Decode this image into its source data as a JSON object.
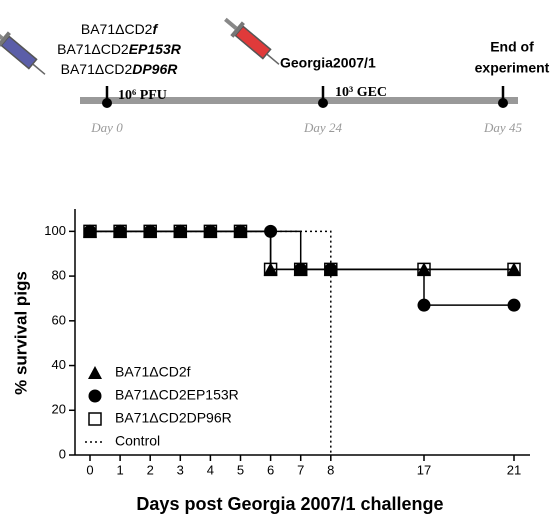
{
  "timeline": {
    "vaccines": [
      {
        "name": "BA71ΔCD2",
        "gene": "f"
      },
      {
        "name": "BA71ΔCD2",
        "gene": "EP153R"
      },
      {
        "name": "BA71ΔCD2",
        "gene": "DP96R"
      }
    ],
    "dose1": "10⁶ PFU",
    "challenge": "Georgia2007/1",
    "dose2": "10³ GEC",
    "end": [
      "End of",
      "experiment"
    ],
    "days": [
      "Day 0",
      "Day 24",
      "Day 45"
    ]
  },
  "chart_data": {
    "type": "step",
    "xlabel": "Days post Georgia 2007/1 challenge",
    "ylabel": "% survival pigs",
    "categories": [
      "0",
      "1",
      "2",
      "3",
      "4",
      "5",
      "6",
      "7",
      "8",
      "17",
      "21"
    ],
    "ylim": [
      0,
      110
    ],
    "yticks": [
      0,
      20,
      40,
      60,
      80,
      100
    ],
    "legend": "lower left",
    "series": [
      {
        "name": "BA71ΔCD2EP153R",
        "marker": "circle",
        "color": "#000000",
        "values": [
          100,
          100,
          100,
          100,
          100,
          100,
          100,
          83,
          83,
          67,
          67
        ]
      },
      {
        "name": "BA71ΔCD2f",
        "marker": "triangle",
        "color": "#000000",
        "values": [
          100,
          100,
          100,
          100,
          100,
          100,
          83,
          83,
          83,
          83,
          83
        ]
      },
      {
        "name": "BA71ΔCD2DP96R",
        "marker": "square",
        "color": "#000000",
        "values": [
          100,
          100,
          100,
          100,
          100,
          100,
          83,
          83,
          83,
          83,
          83
        ]
      },
      {
        "name": "Control",
        "marker": "none",
        "color": "#000000",
        "dash": "dotted",
        "values": [
          100,
          100,
          100,
          100,
          100,
          100,
          100,
          100,
          0,
          null,
          null
        ]
      }
    ],
    "legend_order": [
      1,
      0,
      2,
      3
    ]
  }
}
